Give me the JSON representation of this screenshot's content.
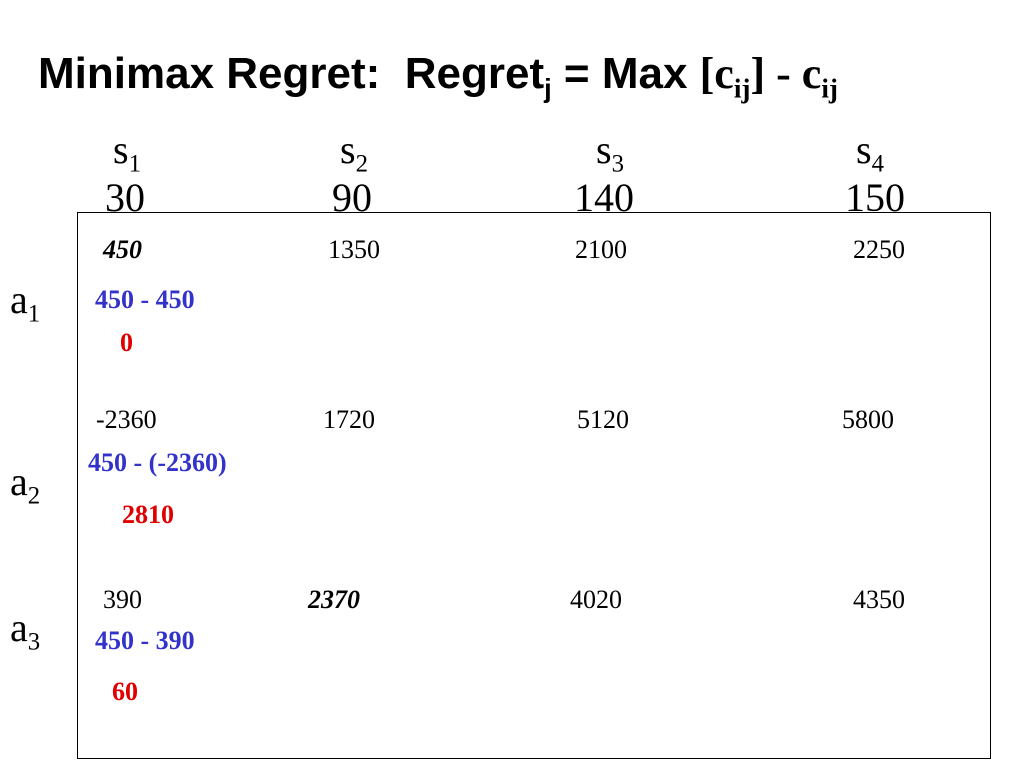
{
  "title": {
    "parts": [
      "Minimax Regret:  Regret",
      "j",
      " = Max ",
      "[c",
      "ij",
      "] - c",
      "ij"
    ]
  },
  "states": [
    {
      "name": "s",
      "sub": "1",
      "value": 30
    },
    {
      "name": "s",
      "sub": "2",
      "value": 90
    },
    {
      "name": "s",
      "sub": "3",
      "value": 140
    },
    {
      "name": "s",
      "sub": "4",
      "value": 150
    }
  ],
  "rows": [
    {
      "name": "a",
      "sub": "1",
      "payoffs": [
        450,
        1350,
        2100,
        2250
      ],
      "emphasized": 0,
      "regret_calc": "450 - 450",
      "regret": 0
    },
    {
      "name": "a",
      "sub": "2",
      "payoffs": [
        -2360,
        1720,
        5120,
        5800
      ],
      "emphasized": null,
      "regret_calc": "450 - (-2360)",
      "regret": 2810
    },
    {
      "name": "a",
      "sub": "3",
      "payoffs": [
        390,
        2370,
        4020,
        4350
      ],
      "emphasized": 1,
      "regret_calc": "450 - 390",
      "regret": 60
    }
  ]
}
